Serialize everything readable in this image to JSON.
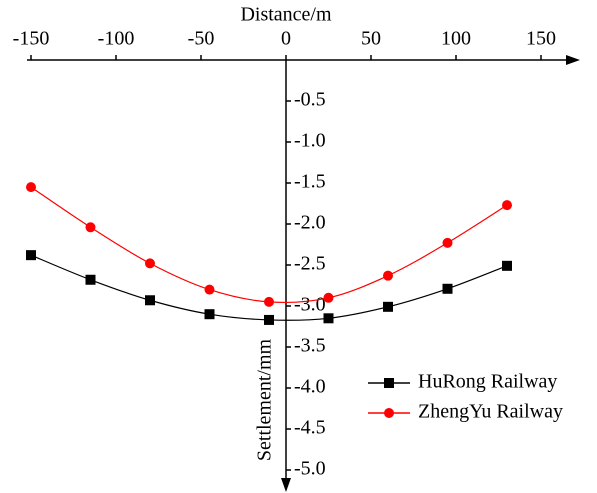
{
  "chart_data": {
    "type": "line",
    "x_label": "Distance/m",
    "y_label": "Settlement/mm",
    "x": [
      -150,
      -115,
      -80,
      -45,
      -10,
      25,
      60,
      95,
      130
    ],
    "series": [
      {
        "name": "HuRong Railway",
        "color": "#000000",
        "marker": "square",
        "values": [
          -2.38,
          -2.68,
          -2.93,
          -3.1,
          -3.17,
          -3.15,
          -3.01,
          -2.79,
          -2.51
        ]
      },
      {
        "name": "ZhengYu Railway",
        "color": "#ff0000",
        "marker": "circle",
        "values": [
          -1.55,
          -2.04,
          -2.48,
          -2.8,
          -2.95,
          -2.9,
          -2.63,
          -2.23,
          -1.77
        ]
      }
    ],
    "xlim": [
      -150,
      150
    ],
    "xticks": [
      -150,
      -100,
      -50,
      0,
      50,
      100,
      150
    ],
    "ylim": [
      -5.0,
      0
    ],
    "yticks": [
      -0.5,
      {
        "value": -1.0,
        "label": "-1.0"
      },
      -1.5,
      {
        "value": -2.0,
        "label": "-2.0"
      },
      -2.5,
      {
        "value": -3.0,
        "label": "-3.0"
      },
      -3.5,
      {
        "value": -4.0,
        "label": "-4.0"
      },
      -4.5,
      {
        "value": -5.0,
        "label": "-5.0"
      }
    ],
    "legend": "lower right"
  }
}
